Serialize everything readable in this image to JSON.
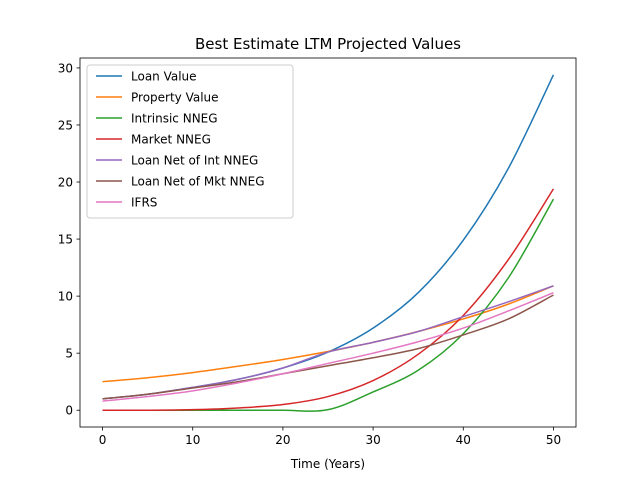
{
  "chart_data": {
    "type": "line",
    "title": "Best Estimate LTM Projected Values",
    "xlabel": "Time (Years)",
    "ylabel": "",
    "xlim": [
      -2.5,
      52.5
    ],
    "ylim": [
      -1.47,
      30.87
    ],
    "xticks": [
      0,
      10,
      20,
      30,
      40,
      50
    ],
    "yticks": [
      0,
      5,
      10,
      15,
      20,
      25,
      30
    ],
    "grid": false,
    "legend_position": "top-left",
    "x": [
      0,
      5,
      10,
      15,
      20,
      25,
      30,
      35,
      40,
      45,
      50
    ],
    "series": [
      {
        "name": "Loan Value",
        "color": "#1f77b4",
        "values": [
          1.0,
          1.4,
          2.0,
          2.7,
          3.7,
          5.1,
          7.2,
          10.3,
          14.9,
          21.2,
          29.4
        ]
      },
      {
        "name": "Property Value",
        "color": "#ff7f0e",
        "values": [
          2.5,
          2.85,
          3.3,
          3.85,
          4.45,
          5.15,
          5.95,
          6.9,
          8.0,
          9.3,
          10.9
        ]
      },
      {
        "name": "Intrinsic NNEG",
        "color": "#2ca02c",
        "values": [
          0.0,
          0.0,
          0.0,
          0.0,
          0.0,
          0.05,
          1.6,
          3.5,
          6.7,
          11.6,
          18.5
        ]
      },
      {
        "name": "Market NNEG",
        "color": "#d62728",
        "values": [
          0.0,
          0.0,
          0.05,
          0.2,
          0.5,
          1.2,
          2.6,
          4.9,
          8.3,
          13.2,
          19.4
        ]
      },
      {
        "name": "Loan Net of Int NNEG",
        "color": "#9467bd",
        "values": [
          1.0,
          1.4,
          2.0,
          2.7,
          3.7,
          5.1,
          5.95,
          6.9,
          8.2,
          9.5,
          10.9
        ]
      },
      {
        "name": "Loan Net of Mkt NNEG",
        "color": "#8c564b",
        "values": [
          1.0,
          1.4,
          1.95,
          2.5,
          3.2,
          3.9,
          4.6,
          5.4,
          6.6,
          8.0,
          10.1
        ]
      },
      {
        "name": "IFRS",
        "color": "#e377c2",
        "values": [
          0.8,
          1.2,
          1.7,
          2.4,
          3.2,
          4.1,
          5.0,
          6.0,
          7.2,
          8.7,
          10.3
        ]
      }
    ]
  }
}
